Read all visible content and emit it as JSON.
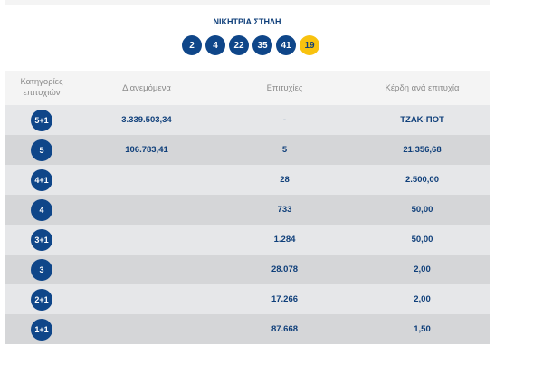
{
  "title": "ΝΙΚΗΤΡΙΑ ΣΤΗΛΗ",
  "numbers": [
    "2",
    "4",
    "22",
    "35",
    "41"
  ],
  "bonus": "19",
  "headers": [
    "Κατηγορίες επιτυχιών",
    "Διανεμόμενα",
    "Επιτυχίες",
    "Κέρδη ανά επιτυχία"
  ],
  "rows": [
    {
      "cat": "5+1",
      "dist": "3.339.503,34",
      "wins": "-",
      "prize": "ΤΖΑΚ-ΠΟΤ"
    },
    {
      "cat": "5",
      "dist": "106.783,41",
      "wins": "5",
      "prize": "21.356,68"
    },
    {
      "cat": "4+1",
      "dist": "",
      "wins": "28",
      "prize": "2.500,00"
    },
    {
      "cat": "4",
      "dist": "",
      "wins": "733",
      "prize": "50,00"
    },
    {
      "cat": "3+1",
      "dist": "",
      "wins": "1.284",
      "prize": "50,00"
    },
    {
      "cat": "3",
      "dist": "",
      "wins": "28.078",
      "prize": "2,00"
    },
    {
      "cat": "2+1",
      "dist": "",
      "wins": "17.266",
      "prize": "2,00"
    },
    {
      "cat": "1+1",
      "dist": "",
      "wins": "87.668",
      "prize": "1,50"
    }
  ]
}
